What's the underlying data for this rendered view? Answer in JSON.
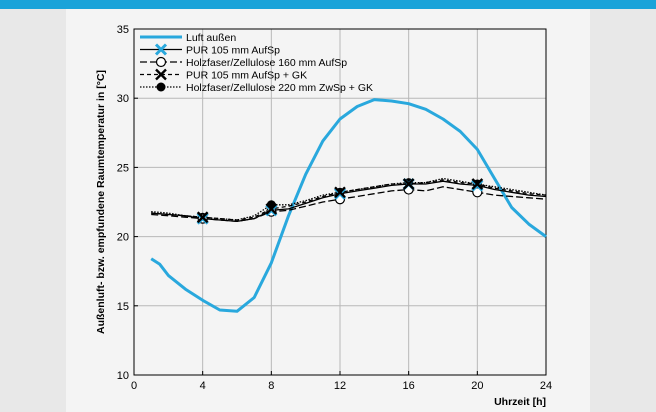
{
  "chart_data": {
    "type": "line",
    "title": "",
    "xlabel": "Uhrzeit [h]",
    "ylabel": "Außenluft- bzw. empfundene Raumtemperatur in [°C]",
    "xlim": [
      0,
      24
    ],
    "ylim": [
      10,
      35
    ],
    "x_ticks": [
      0,
      4,
      8,
      12,
      16,
      20,
      24
    ],
    "y_ticks": [
      10,
      15,
      20,
      25,
      30,
      35
    ],
    "grid": true,
    "legend_position": "top-left",
    "series": [
      {
        "name": "Luft außen",
        "color": "#29a8dd",
        "style": "solid",
        "marker": "none",
        "x": [
          1,
          1.5,
          2,
          3,
          4,
          5,
          6,
          7,
          8,
          9,
          10,
          11,
          12,
          13,
          14,
          15,
          16,
          17,
          18,
          19,
          20,
          21,
          22,
          23,
          24
        ],
        "y": [
          18.4,
          18.0,
          17.2,
          16.2,
          15.4,
          14.7,
          14.6,
          15.6,
          18.1,
          21.5,
          24.5,
          26.9,
          28.5,
          29.4,
          29.9,
          29.8,
          29.6,
          29.2,
          28.5,
          27.6,
          26.3,
          24.2,
          22.1,
          20.9,
          20.0
        ]
      },
      {
        "name": "PUR 105 mm AufSp",
        "color": "#000000",
        "style": "solid",
        "marker": "x-blue",
        "marker_at": [
          4,
          8,
          12,
          16,
          20
        ],
        "x": [
          1,
          2,
          3,
          4,
          5,
          6,
          7,
          8,
          9,
          10,
          11,
          12,
          13,
          14,
          15,
          16,
          17,
          18,
          19,
          20,
          21,
          22,
          23,
          24
        ],
        "y": [
          21.7,
          21.6,
          21.5,
          21.3,
          21.2,
          21.1,
          21.3,
          21.9,
          22.0,
          22.4,
          22.8,
          23.1,
          23.3,
          23.5,
          23.7,
          23.8,
          23.8,
          24.0,
          23.8,
          23.7,
          23.4,
          23.2,
          23.0,
          22.9
        ]
      },
      {
        "name": "Holzfaser/Zellulose 160 mm AufSp",
        "color": "#000000",
        "style": "longdash",
        "marker": "open-circle",
        "marker_at": [
          4,
          8,
          12,
          16,
          20
        ],
        "x": [
          1,
          2,
          3,
          4,
          5,
          6,
          7,
          8,
          9,
          10,
          11,
          12,
          13,
          14,
          15,
          16,
          17,
          18,
          19,
          20,
          21,
          22,
          23,
          24
        ],
        "y": [
          21.6,
          21.5,
          21.4,
          21.3,
          21.2,
          21.1,
          21.3,
          21.8,
          21.9,
          22.2,
          22.5,
          22.7,
          22.9,
          23.1,
          23.3,
          23.4,
          23.3,
          23.6,
          23.4,
          23.2,
          23.0,
          22.9,
          22.8,
          22.7
        ]
      },
      {
        "name": "PUR 105 mm AufSp + GK",
        "color": "#000000",
        "style": "dash",
        "marker": "x-black",
        "marker_at": [
          4,
          8,
          12,
          16,
          20
        ],
        "x": [
          1,
          2,
          3,
          4,
          5,
          6,
          7,
          8,
          9,
          10,
          11,
          12,
          13,
          14,
          15,
          16,
          17,
          18,
          19,
          20,
          21,
          22,
          23,
          24
        ],
        "y": [
          21.7,
          21.6,
          21.5,
          21.4,
          21.3,
          21.2,
          21.4,
          22.0,
          22.2,
          22.5,
          22.9,
          23.2,
          23.4,
          23.6,
          23.8,
          23.8,
          23.9,
          24.1,
          23.9,
          23.8,
          23.5,
          23.3,
          23.1,
          23.0
        ]
      },
      {
        "name": "Holzfaser/Zellulose 220 mm ZwSp + GK",
        "color": "#000000",
        "style": "dot",
        "marker": "filled-circle",
        "marker_at": [
          4,
          8,
          12,
          16,
          20
        ],
        "x": [
          1,
          2,
          3,
          4,
          5,
          6,
          7,
          8,
          9,
          10,
          11,
          12,
          13,
          14,
          15,
          16,
          17,
          18,
          19,
          20,
          21,
          22,
          23,
          24
        ],
        "y": [
          21.8,
          21.7,
          21.5,
          21.4,
          21.3,
          21.2,
          21.5,
          22.3,
          22.3,
          22.6,
          23.0,
          23.2,
          23.4,
          23.6,
          23.8,
          23.9,
          23.9,
          24.2,
          24.0,
          23.8,
          23.6,
          23.4,
          23.2,
          23.0
        ]
      }
    ]
  }
}
